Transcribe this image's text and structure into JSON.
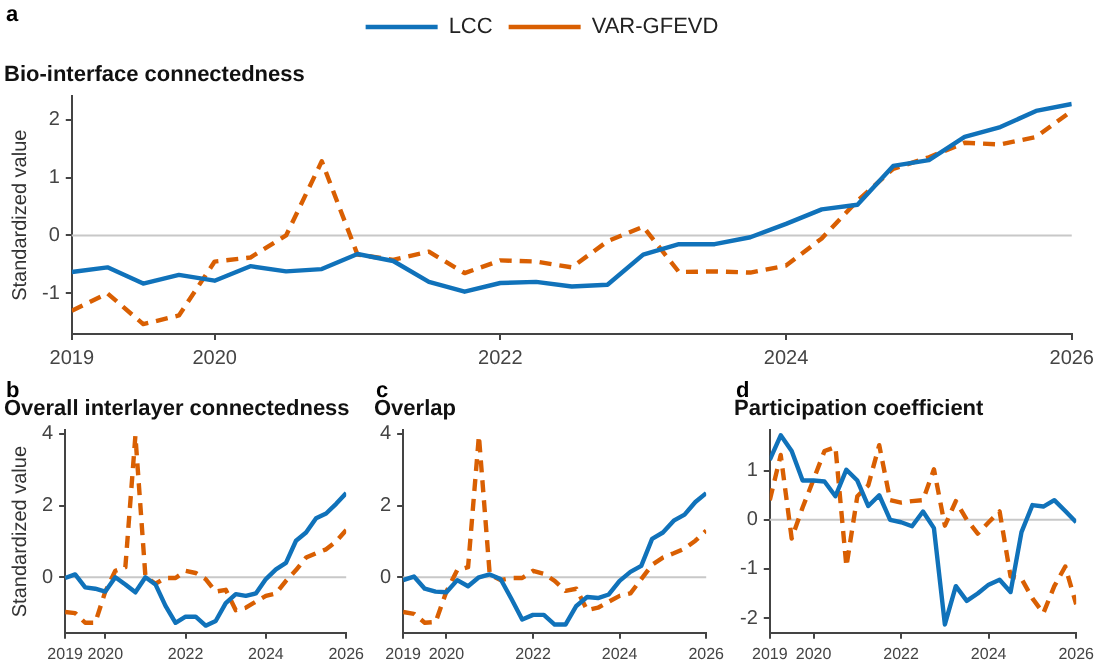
{
  "chart_data": [
    {
      "type": "line",
      "title": "Bio-interface connectedness",
      "ylabel": "Standardized value",
      "annotations": [
        "a"
      ],
      "legend": "top",
      "x": [
        2019,
        2019.25,
        2019.5,
        2019.75,
        2020,
        2020.25,
        2020.5,
        2020.75,
        2021,
        2021.25,
        2021.5,
        2021.75,
        2022,
        2022.25,
        2022.5,
        2022.75,
        2023,
        2023.25,
        2023.5,
        2023.75,
        2024,
        2024.25,
        2024.5,
        2024.75,
        2025,
        2025.25,
        2025.5,
        2025.75,
        2026
      ],
      "xlim": [
        2019,
        2026
      ],
      "xticks": [
        2019,
        2020,
        2022,
        2024,
        2026
      ],
      "ylim": [
        -1.7,
        2.4
      ],
      "yticks": [
        -1,
        0,
        1,
        2
      ],
      "ref_lines": [
        {
          "axis": "y",
          "value": 0,
          "color": "#c8c8c8"
        }
      ],
      "series": [
        {
          "name": "LCC",
          "color": "#1072ba",
          "line_style": "solid",
          "values": [
            -0.63,
            -0.55,
            -0.83,
            -0.68,
            -0.78,
            -0.53,
            -0.62,
            -0.58,
            -0.32,
            -0.44,
            -0.8,
            -0.97,
            -0.82,
            -0.8,
            -0.88,
            -0.85,
            -0.33,
            -0.15,
            -0.15,
            -0.03,
            0.2,
            0.45,
            0.53,
            1.2,
            1.3,
            1.7,
            1.87,
            2.15,
            2.27
          ]
        },
        {
          "name": "VAR-GFEVD",
          "color": "#d95f02",
          "line_style": "dashed",
          "values": [
            -1.3,
            -1,
            -1.53,
            -1.38,
            -0.45,
            -0.38,
            0,
            1.28,
            -0.33,
            -0.42,
            -0.28,
            -0.65,
            -0.43,
            -0.45,
            -0.55,
            -0.1,
            0.15,
            -0.63,
            -0.62,
            -0.64,
            -0.52,
            -0.05,
            0.6,
            1.15,
            1.35,
            1.6,
            1.57,
            1.7,
            2.15
          ]
        }
      ]
    },
    {
      "type": "line",
      "title": "Overall interlayer connectedness",
      "ylabel": "Standardized value",
      "annotations": [
        "b"
      ],
      "x": [
        2019,
        2019.25,
        2019.5,
        2019.75,
        2020,
        2020.25,
        2020.5,
        2020.75,
        2021,
        2021.25,
        2021.5,
        2021.75,
        2022,
        2022.25,
        2022.5,
        2022.75,
        2023,
        2023.25,
        2023.5,
        2023.75,
        2024,
        2024.25,
        2024.5,
        2024.75,
        2025,
        2025.25,
        2025.5,
        2025.75,
        2026
      ],
      "xlim": [
        2019,
        2026
      ],
      "xticks": [
        2019,
        2020,
        2022,
        2024,
        2026
      ],
      "ylim": [
        -1.55,
        4.1
      ],
      "yticks": [
        0,
        2,
        4
      ],
      "ref_lines": [
        {
          "axis": "y",
          "value": 0,
          "color": "#c8c8c8"
        }
      ],
      "series": [
        {
          "color": "#1072ba",
          "line_style": "solid",
          "values": [
            -0.02,
            0.08,
            -0.28,
            -0.32,
            -0.4,
            0,
            -0.2,
            -0.42,
            0,
            -0.2,
            -0.8,
            -1.27,
            -1.1,
            -1.1,
            -1.35,
            -1.22,
            -0.72,
            -0.47,
            -0.52,
            -0.45,
            -0.05,
            0.22,
            0.4,
            1.02,
            1.25,
            1.65,
            1.78,
            2.05,
            2.35
          ]
        },
        {
          "color": "#d95f02",
          "line_style": "dashed",
          "values": [
            -0.97,
            -1,
            -1.27,
            -1.27,
            -0.4,
            0.18,
            0.28,
            3.95,
            0.02,
            -0.18,
            -0.02,
            -0.02,
            0.18,
            0.12,
            -0.05,
            -0.4,
            -0.35,
            -0.92,
            -0.85,
            -0.68,
            -0.52,
            -0.45,
            -0.1,
            0.2,
            0.55,
            0.67,
            0.78,
            1,
            1.32
          ]
        }
      ]
    },
    {
      "type": "line",
      "title": "Overlap",
      "annotations": [
        "c"
      ],
      "x": [
        2019,
        2019.25,
        2019.5,
        2019.75,
        2020,
        2020.25,
        2020.5,
        2020.75,
        2021,
        2021.25,
        2021.5,
        2021.75,
        2022,
        2022.25,
        2022.5,
        2022.75,
        2023,
        2023.25,
        2023.5,
        2023.75,
        2024,
        2024.25,
        2024.5,
        2024.75,
        2025,
        2025.25,
        2025.5,
        2025.75,
        2026
      ],
      "xlim": [
        2019,
        2026
      ],
      "xticks": [
        2019,
        2020,
        2022,
        2024,
        2026
      ],
      "ylim": [
        -1.55,
        4.1
      ],
      "yticks": [
        0,
        2,
        4
      ],
      "ref_lines": [
        {
          "axis": "y",
          "value": 0,
          "color": "#c8c8c8"
        }
      ],
      "series": [
        {
          "color": "#1072ba",
          "line_style": "solid",
          "values": [
            -0.08,
            0.02,
            -0.32,
            -0.4,
            -0.42,
            -0.08,
            -0.25,
            0,
            0.08,
            -0.05,
            -0.6,
            -1.18,
            -1.05,
            -1.05,
            -1.32,
            -1.32,
            -0.8,
            -0.55,
            -0.58,
            -0.48,
            -0.1,
            0.15,
            0.32,
            1.07,
            1.25,
            1.58,
            1.75,
            2.1,
            2.35
          ]
        },
        {
          "color": "#d95f02",
          "line_style": "dashed",
          "values": [
            -0.97,
            -1.02,
            -1.27,
            -1.25,
            -0.4,
            0.2,
            0.28,
            3.95,
            0.08,
            -0.08,
            -0.02,
            -0.02,
            0.18,
            0.1,
            -0.1,
            -0.38,
            -0.32,
            -0.92,
            -0.85,
            -0.68,
            -0.52,
            -0.45,
            -0.05,
            0.35,
            0.55,
            0.67,
            0.8,
            1.02,
            1.3
          ]
        }
      ]
    },
    {
      "type": "line",
      "title": "Participation coefficient",
      "annotations": [
        "d"
      ],
      "x": [
        2019,
        2019.25,
        2019.5,
        2019.75,
        2020,
        2020.25,
        2020.5,
        2020.75,
        2021,
        2021.25,
        2021.5,
        2021.75,
        2022,
        2022.25,
        2022.5,
        2022.75,
        2023,
        2023.25,
        2023.5,
        2023.75,
        2024,
        2024.25,
        2024.5,
        2024.75,
        2025,
        2025.25,
        2025.5,
        2025.75,
        2026
      ],
      "xlim": [
        2019,
        2026
      ],
      "xticks": [
        2019,
        2020,
        2022,
        2024,
        2026
      ],
      "ylim": [
        -2.3,
        1.82
      ],
      "yticks": [
        -2,
        -1,
        0,
        1
      ],
      "ref_lines": [
        {
          "axis": "y",
          "value": 0,
          "color": "#c8c8c8"
        }
      ],
      "series": [
        {
          "color": "#1072ba",
          "line_style": "solid",
          "values": [
            1.22,
            1.72,
            1.4,
            0.8,
            0.8,
            0.78,
            0.48,
            1.02,
            0.8,
            0.28,
            0.5,
            0,
            -0.05,
            -0.13,
            0.17,
            -0.17,
            -2.13,
            -1.35,
            -1.65,
            -1.5,
            -1.32,
            -1.22,
            -1.47,
            -0.25,
            0.3,
            0.27,
            0.4,
            0.18,
            -0.05
          ]
        },
        {
          "color": "#d95f02",
          "line_style": "dashed",
          "values": [
            0.4,
            1.32,
            -0.38,
            0.25,
            0.82,
            1.4,
            1.48,
            -0.95,
            0.48,
            0.7,
            1.52,
            0.4,
            0.35,
            0.38,
            0.4,
            1.03,
            -0.12,
            0.38,
            0,
            -0.28,
            -0.05,
            0.17,
            -1.15,
            -1.2,
            -1.6,
            -1.9,
            -1.35,
            -0.95,
            -1.72
          ]
        }
      ]
    }
  ]
}
